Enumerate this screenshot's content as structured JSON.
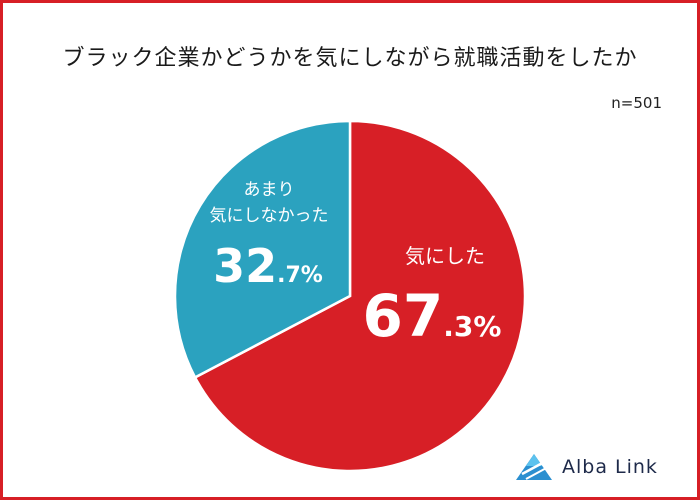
{
  "title": "ブラック企業かどうかを気にしながら就職活動をしたか",
  "sample_size": "n=501",
  "chart_data": {
    "type": "pie",
    "title": "ブラック企業かどうかを気にしながら就職活動をしたか",
    "start": "12 o'clock, clockwise",
    "slices": [
      {
        "label": "気にした",
        "value": 67.3,
        "color": "#d71f26",
        "display": {
          "int": "67",
          "dec": ".3%"
        }
      },
      {
        "label": "あまり気にしなかった",
        "label_lines": [
          "あまり",
          "気にしなかった"
        ],
        "value": 32.7,
        "color": "#2ba2bf",
        "display": {
          "int": "32",
          "dec": ".7%"
        }
      }
    ]
  },
  "logo": {
    "text": "Alba Link",
    "icon": "alba-link-logo-icon"
  }
}
